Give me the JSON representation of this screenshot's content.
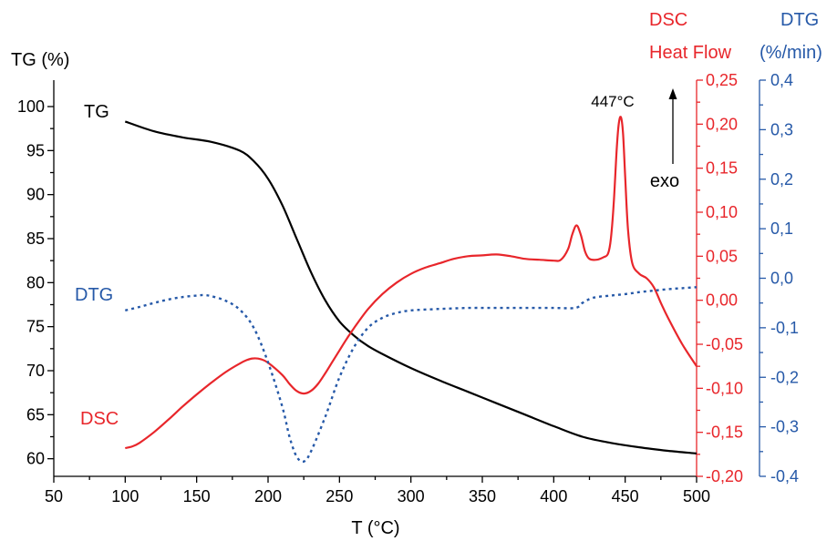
{
  "chart_data": {
    "type": "line",
    "xlabel": "T (°C)",
    "xlim": [
      50,
      500
    ],
    "x_ticks": [
      "50",
      "100",
      "150",
      "200",
      "250",
      "300",
      "350",
      "400",
      "450",
      "500"
    ],
    "axes": {
      "tg": {
        "label": "TG (%)",
        "ylim": [
          58,
          103
        ],
        "ticks": [
          "60",
          "65",
          "70",
          "75",
          "80",
          "85",
          "90",
          "95",
          "100"
        ],
        "tick_values": [
          60,
          65,
          70,
          75,
          80,
          85,
          90,
          95,
          100
        ],
        "color": "#000000"
      },
      "dsc": {
        "label_top": "DSC",
        "label": "Heat Flow",
        "ylim": [
          -0.2,
          0.25
        ],
        "ticks": [
          "-0,20",
          "-0,15",
          "-0,10",
          "-0,05",
          "0,00",
          "0,05",
          "0,10",
          "0,15",
          "0,20",
          "0,25"
        ],
        "tick_values": [
          -0.2,
          -0.15,
          -0.1,
          -0.05,
          0.0,
          0.05,
          0.1,
          0.15,
          0.2,
          0.25
        ],
        "color": "#e8262b"
      },
      "dtg": {
        "label_top": "DTG",
        "label": "(%/min)",
        "ylim": [
          -0.4,
          0.4
        ],
        "ticks": [
          "-0,4",
          "-0,3",
          "-0,2",
          "-0,1",
          "0,0",
          "0,1",
          "0,2",
          "0,3",
          "0,4"
        ],
        "tick_values": [
          -0.4,
          -0.3,
          -0.2,
          -0.1,
          0.0,
          0.1,
          0.2,
          0.3,
          0.4
        ],
        "color": "#2659a8"
      }
    },
    "series": [
      {
        "name": "TG",
        "axis": "tg",
        "style": "solid",
        "x": [
          100,
          120,
          140,
          160,
          180,
          190,
          200,
          210,
          220,
          230,
          240,
          250,
          260,
          270,
          280,
          300,
          320,
          340,
          360,
          380,
          400,
          420,
          440,
          460,
          480,
          500
        ],
        "y": [
          98.3,
          97.2,
          96.5,
          96.0,
          95.0,
          93.8,
          91.8,
          88.8,
          85.0,
          81.2,
          78.0,
          75.6,
          74.0,
          72.8,
          71.9,
          70.3,
          68.9,
          67.6,
          66.3,
          65.0,
          63.7,
          62.5,
          61.8,
          61.3,
          60.9,
          60.6
        ]
      },
      {
        "name": "DSC",
        "axis": "dsc",
        "style": "solid",
        "x": [
          100,
          105,
          110,
          120,
          130,
          140,
          150,
          160,
          170,
          180,
          185,
          190,
          195,
          200,
          210,
          215,
          220,
          225,
          230,
          235,
          240,
          245,
          250,
          255,
          260,
          270,
          280,
          290,
          300,
          310,
          320,
          330,
          340,
          350,
          360,
          370,
          380,
          390,
          400,
          405,
          410,
          413,
          416,
          419,
          422,
          425,
          430,
          435,
          438,
          440,
          442,
          444,
          445.5,
          447,
          448.5,
          450,
          452,
          455,
          460,
          465,
          470,
          475,
          480,
          490,
          500
        ],
        "y": [
          -0.168,
          -0.166,
          -0.162,
          -0.15,
          -0.136,
          -0.121,
          -0.107,
          -0.094,
          -0.082,
          -0.072,
          -0.068,
          -0.066,
          -0.067,
          -0.071,
          -0.085,
          -0.095,
          -0.103,
          -0.106,
          -0.103,
          -0.095,
          -0.083,
          -0.07,
          -0.057,
          -0.044,
          -0.032,
          -0.01,
          0.007,
          0.02,
          0.03,
          0.037,
          0.042,
          0.047,
          0.05,
          0.051,
          0.052,
          0.05,
          0.047,
          0.046,
          0.045,
          0.046,
          0.058,
          0.075,
          0.085,
          0.074,
          0.055,
          0.047,
          0.046,
          0.049,
          0.053,
          0.07,
          0.11,
          0.17,
          0.2,
          0.208,
          0.19,
          0.14,
          0.08,
          0.042,
          0.03,
          0.025,
          0.015,
          -0.003,
          -0.02,
          -0.05,
          -0.075
        ]
      },
      {
        "name": "DTG",
        "axis": "dtg",
        "style": "dotted",
        "x": [
          100,
          110,
          120,
          130,
          140,
          150,
          155,
          160,
          170,
          180,
          190,
          200,
          210,
          215,
          220,
          225,
          230,
          240,
          250,
          260,
          270,
          280,
          290,
          300,
          320,
          340,
          360,
          380,
          400,
          415,
          420,
          425,
          430,
          440,
          450,
          460,
          470,
          480,
          490,
          500
        ],
        "y": [
          -0.065,
          -0.058,
          -0.05,
          -0.043,
          -0.038,
          -0.035,
          -0.034,
          -0.036,
          -0.045,
          -0.063,
          -0.1,
          -0.17,
          -0.26,
          -0.32,
          -0.36,
          -0.37,
          -0.35,
          -0.28,
          -0.2,
          -0.14,
          -0.1,
          -0.08,
          -0.07,
          -0.065,
          -0.062,
          -0.06,
          -0.06,
          -0.06,
          -0.06,
          -0.06,
          -0.05,
          -0.042,
          -0.038,
          -0.035,
          -0.032,
          -0.028,
          -0.025,
          -0.022,
          -0.02,
          -0.018
        ]
      }
    ],
    "annotations": {
      "tg_label": "TG",
      "dtg_label": "DTG",
      "dsc_label": "DSC",
      "peak_label": "447°C",
      "exo_label": "exo"
    }
  }
}
